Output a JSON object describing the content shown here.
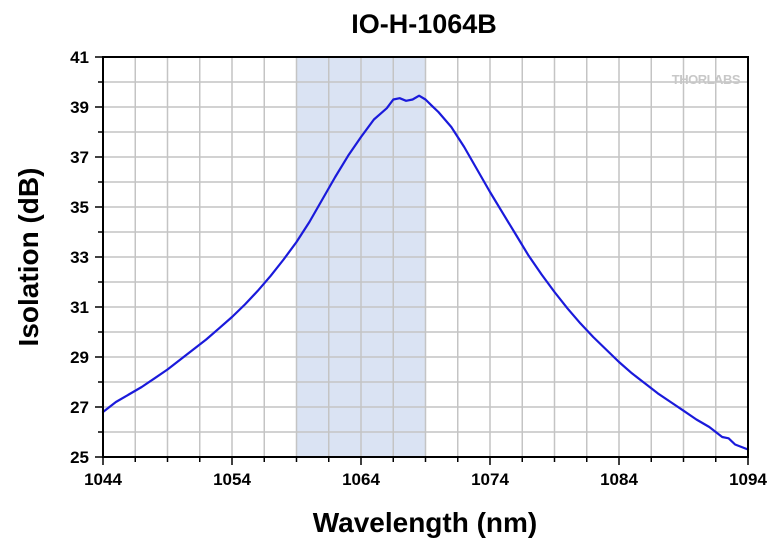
{
  "chart_data": {
    "type": "line",
    "title": "IO-H-1064B",
    "xlabel": "Wavelength (nm)",
    "ylabel": "Isolation (dB)",
    "xlim": [
      1044,
      1094
    ],
    "ylim": [
      25,
      41
    ],
    "x_ticks": [
      1044,
      1054,
      1064,
      1074,
      1084,
      1094
    ],
    "y_ticks": [
      25,
      27,
      29,
      31,
      33,
      35,
      37,
      39,
      41
    ],
    "x_minor_step": 2.5,
    "y_minor_step": 1,
    "grid": true,
    "shaded_region": {
      "x_start": 1059,
      "x_end": 1069,
      "color": "#dae3f3"
    },
    "watermark": "THORLABS",
    "colors": {
      "line": "#1a1adb",
      "grid": "#c4c4c4",
      "axis": "#000000"
    },
    "series": [
      {
        "name": "Isolation",
        "x": [
          1044,
          1045,
          1046,
          1047,
          1048,
          1049,
          1050,
          1051,
          1052,
          1053,
          1054,
          1055,
          1056,
          1057,
          1058,
          1059,
          1060,
          1061,
          1062,
          1063,
          1064,
          1065,
          1066,
          1066.5,
          1067,
          1067.5,
          1068,
          1068.5,
          1069,
          1069.5,
          1070,
          1071,
          1072,
          1073,
          1074,
          1075,
          1076,
          1077,
          1078,
          1079,
          1080,
          1081,
          1082,
          1083,
          1084,
          1085,
          1086,
          1087,
          1088,
          1089,
          1090,
          1091,
          1092,
          1092.5,
          1093,
          1094
        ],
        "values": [
          26.8,
          27.2,
          27.5,
          27.8,
          28.15,
          28.5,
          28.9,
          29.3,
          29.7,
          30.15,
          30.6,
          31.1,
          31.65,
          32.25,
          32.9,
          33.6,
          34.4,
          35.3,
          36.2,
          37.05,
          37.8,
          38.5,
          38.95,
          39.3,
          39.35,
          39.25,
          39.3,
          39.45,
          39.3,
          39.05,
          38.8,
          38.2,
          37.4,
          36.5,
          35.6,
          34.75,
          33.9,
          33.05,
          32.3,
          31.6,
          30.95,
          30.35,
          29.8,
          29.3,
          28.8,
          28.35,
          27.95,
          27.55,
          27.2,
          26.85,
          26.5,
          26.2,
          25.8,
          25.75,
          25.5,
          25.3
        ]
      }
    ]
  }
}
